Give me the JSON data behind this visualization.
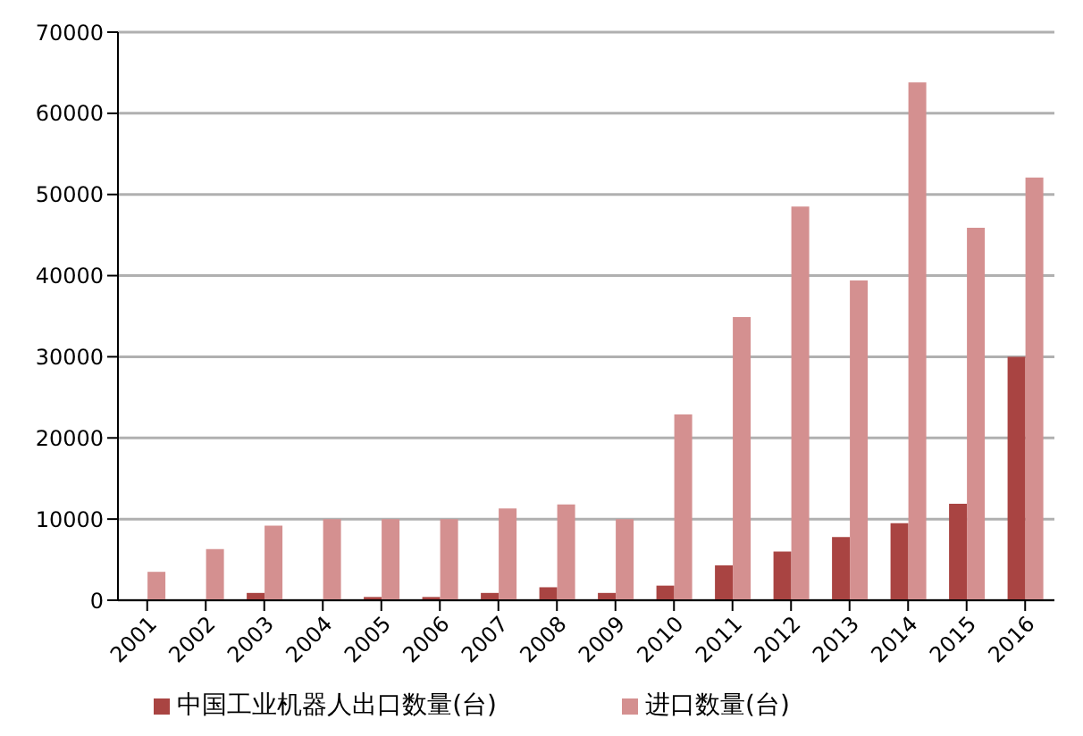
{
  "chart_data": {
    "type": "bar",
    "categories": [
      "2001",
      "2002",
      "2003",
      "2004",
      "2005",
      "2006",
      "2007",
      "2008",
      "2009",
      "2010",
      "2011",
      "2012",
      "2013",
      "2014",
      "2015",
      "2016"
    ],
    "series": [
      {
        "name": "中国工业机器人出口数量(台)",
        "color": "#a94442",
        "values": [
          0,
          0,
          900,
          0,
          400,
          400,
          900,
          1600,
          900,
          1800,
          4300,
          6000,
          7800,
          9500,
          11900,
          30000
        ]
      },
      {
        "name": "进口数量(台)",
        "color": "#d49090",
        "values": [
          3500,
          6300,
          9200,
          10000,
          10000,
          10000,
          11300,
          11800,
          10000,
          22900,
          34900,
          48500,
          39400,
          63800,
          45900,
          52100
        ]
      }
    ],
    "ylim": [
      0,
      70000
    ],
    "yticks": [
      0,
      10000,
      20000,
      30000,
      40000,
      50000,
      60000,
      70000
    ],
    "grid": "y",
    "legend": "bottom"
  }
}
